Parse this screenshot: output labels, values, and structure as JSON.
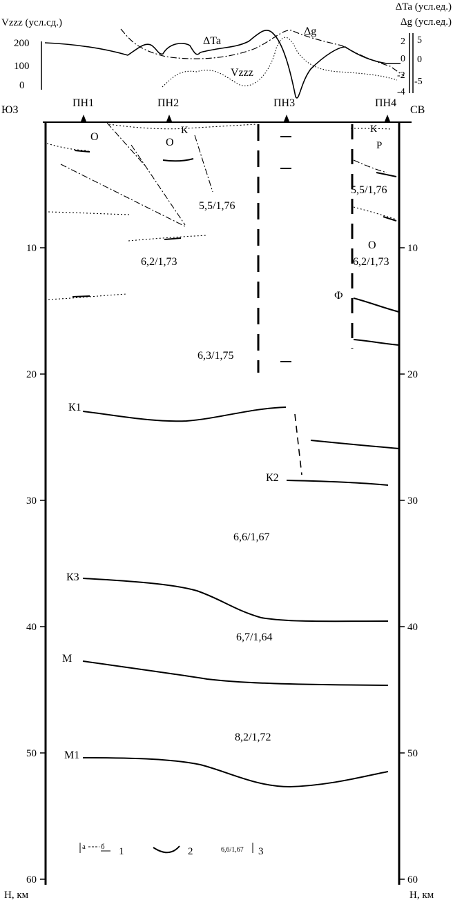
{
  "header": {
    "left_axis_label": "Vzzz (усл.сд.)",
    "right_axis_label_1": "ΔTa (усл.ед.)",
    "right_axis_label_2": "Δg (усл.ед.)",
    "left_ticks": [
      "200",
      "100",
      "0"
    ],
    "right_ticks_dta": [
      "2",
      "0",
      "-2",
      "-4"
    ],
    "right_ticks_dg": [
      "5",
      "0",
      "-5"
    ],
    "curve_labels": {
      "dta": "ΔTa",
      "dg": "Δg",
      "vzzz": "Vzzz"
    }
  },
  "profile": {
    "left_end": "ЮЗ",
    "right_end": "СВ",
    "stations": [
      "ПН1",
      "ПН2",
      "ПН3",
      "ПН4"
    ]
  },
  "depth_axis": {
    "unit_label": "Н, км",
    "ticks": [
      "10",
      "20",
      "30",
      "40",
      "50",
      "60"
    ]
  },
  "boundaries": [
    "К1",
    "К2",
    "К3",
    "М",
    "М1"
  ],
  "layer_labels": [
    "О",
    "О",
    "К",
    "К",
    "Р",
    "О",
    "Ф"
  ],
  "velocity_density": [
    "5,5/1,76",
    "5,5/1,76",
    "6,2/1,73",
    "6,2/1,73",
    "6,3/1,75",
    "6,6/1,67",
    "6,7/1,64",
    "8,2/1,72"
  ],
  "legend": {
    "item1_a": "а",
    "item1_b": "б",
    "item1_num": "1",
    "item2_num": "2",
    "item3_sample": "6,6/1,67",
    "item3_num": "3"
  }
}
